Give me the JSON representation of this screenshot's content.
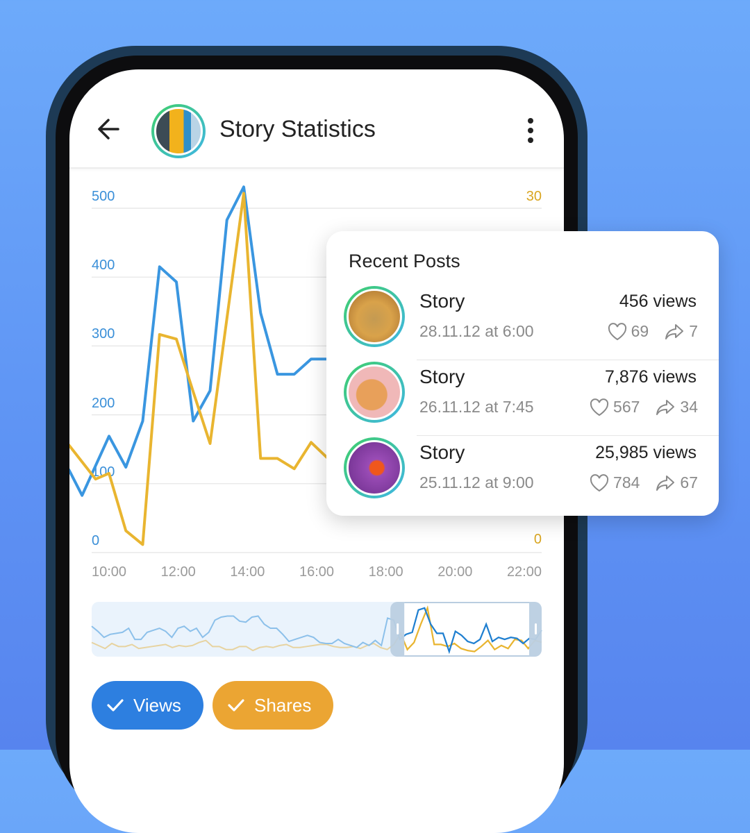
{
  "header": {
    "title": "Story Statistics",
    "back_icon": "arrow-left-icon",
    "menu_icon": "more-vertical-icon",
    "avatar": "parrot"
  },
  "colors": {
    "views": "#3a96e0",
    "shares": "#e9b530",
    "views_button": "#2d7fe0",
    "shares_button": "#eba533",
    "ring_start": "#3fcf6a",
    "ring_end": "#3fb6e6"
  },
  "chart_data": {
    "type": "line",
    "left_axis": {
      "ticks": [
        "500",
        "400",
        "300",
        "200",
        "100",
        "0"
      ],
      "ylim": [
        0,
        500
      ]
    },
    "right_axis": {
      "ticks": [
        "30",
        "0"
      ],
      "ylim": [
        0,
        30
      ]
    },
    "x_ticks": [
      "10:00",
      "12:00",
      "14:00",
      "16:00",
      "18:00",
      "20:00",
      "22:00"
    ],
    "grid": true,
    "series": [
      {
        "name": "Views",
        "axis": "left",
        "points": [
          [
            "8:48",
            121
          ],
          [
            "9:12",
            83
          ],
          [
            "10:00",
            169
          ],
          [
            "10:30",
            124
          ],
          [
            "11:00",
            191
          ],
          [
            "11:30",
            415
          ],
          [
            "12:00",
            393
          ],
          [
            "12:30",
            191
          ],
          [
            "13:00",
            235
          ],
          [
            "13:30",
            483
          ],
          [
            "14:00",
            531
          ],
          [
            "14:30",
            348
          ],
          [
            "15:00",
            259
          ],
          [
            "15:30",
            259
          ],
          [
            "16:00",
            281
          ],
          [
            "16:30",
            281
          ],
          [
            "17:00",
            231
          ],
          [
            "17:30",
            190
          ]
        ]
      },
      {
        "name": "Shares",
        "axis": "right",
        "points": [
          [
            "8:48",
            9.4
          ],
          [
            "9:36",
            6.4
          ],
          [
            "10:00",
            6.9
          ],
          [
            "10:30",
            1.9
          ],
          [
            "11:00",
            0.7
          ],
          [
            "11:30",
            19.0
          ],
          [
            "12:00",
            18.6
          ],
          [
            "12:30",
            14.0
          ],
          [
            "13:00",
            9.5
          ],
          [
            "14:00",
            31.3
          ],
          [
            "14:30",
            8.2
          ],
          [
            "15:00",
            8.2
          ],
          [
            "15:30",
            7.3
          ],
          [
            "16:00",
            9.6
          ],
          [
            "16:30",
            8.2
          ],
          [
            "17:00",
            5.4
          ],
          [
            "17:30",
            4.0
          ]
        ]
      }
    ],
    "overview": {
      "views": [
        140,
        115,
        85,
        100,
        105,
        110,
        130,
        75,
        75,
        110,
        120,
        130,
        115,
        85,
        130,
        140,
        115,
        130,
        85,
        110,
        170,
        185,
        190,
        190,
        165,
        160,
        185,
        190,
        150,
        130,
        130,
        100,
        65,
        75,
        85,
        95,
        85,
        60,
        55,
        55,
        75,
        55,
        45,
        35,
        60,
        45,
        70,
        45,
        180,
        170,
        75,
        100,
        110,
        220,
        230,
        150,
        105,
        105,
        15,
        115,
        95,
        65,
        55,
        75,
        150,
        65,
        85,
        75,
        85,
        80,
        55,
        80,
        75,
        120
      ],
      "shares": [
        60,
        45,
        30,
        55,
        40,
        40,
        50,
        30,
        35,
        40,
        45,
        50,
        35,
        45,
        40,
        45,
        60,
        70,
        40,
        40,
        25,
        25,
        40,
        40,
        20,
        35,
        40,
        35,
        45,
        50,
        35,
        35,
        40,
        45,
        50,
        50,
        40,
        35,
        35,
        40,
        30,
        45,
        55,
        35,
        25,
        50,
        105,
        25,
        60,
        150,
        230,
        50,
        50,
        40,
        55,
        30,
        20,
        15,
        40,
        70,
        25,
        45,
        30,
        75,
        70,
        30,
        70,
        60
      ],
      "selection": [
        0.67,
        1.0
      ]
    }
  },
  "toggles": [
    {
      "label": "Views",
      "checked": true,
      "icon": "check-icon"
    },
    {
      "label": "Shares",
      "checked": true,
      "icon": "check-icon"
    }
  ],
  "recent": {
    "title": "Recent Posts",
    "posts": [
      {
        "name": "Story",
        "date": "28.11.12 at 6:00",
        "views": "456 views",
        "likes": "69",
        "shares": "7",
        "thumb": "cheetah"
      },
      {
        "name": "Story",
        "date": "26.11.12 at 7:45",
        "views": "7,876 views",
        "likes": "567",
        "shares": "34",
        "thumb": "cat"
      },
      {
        "name": "Story",
        "date": "25.11.12 at 9:00",
        "views": "25,985 views",
        "likes": "784",
        "shares": "67",
        "thumb": "clownfish"
      }
    ]
  }
}
